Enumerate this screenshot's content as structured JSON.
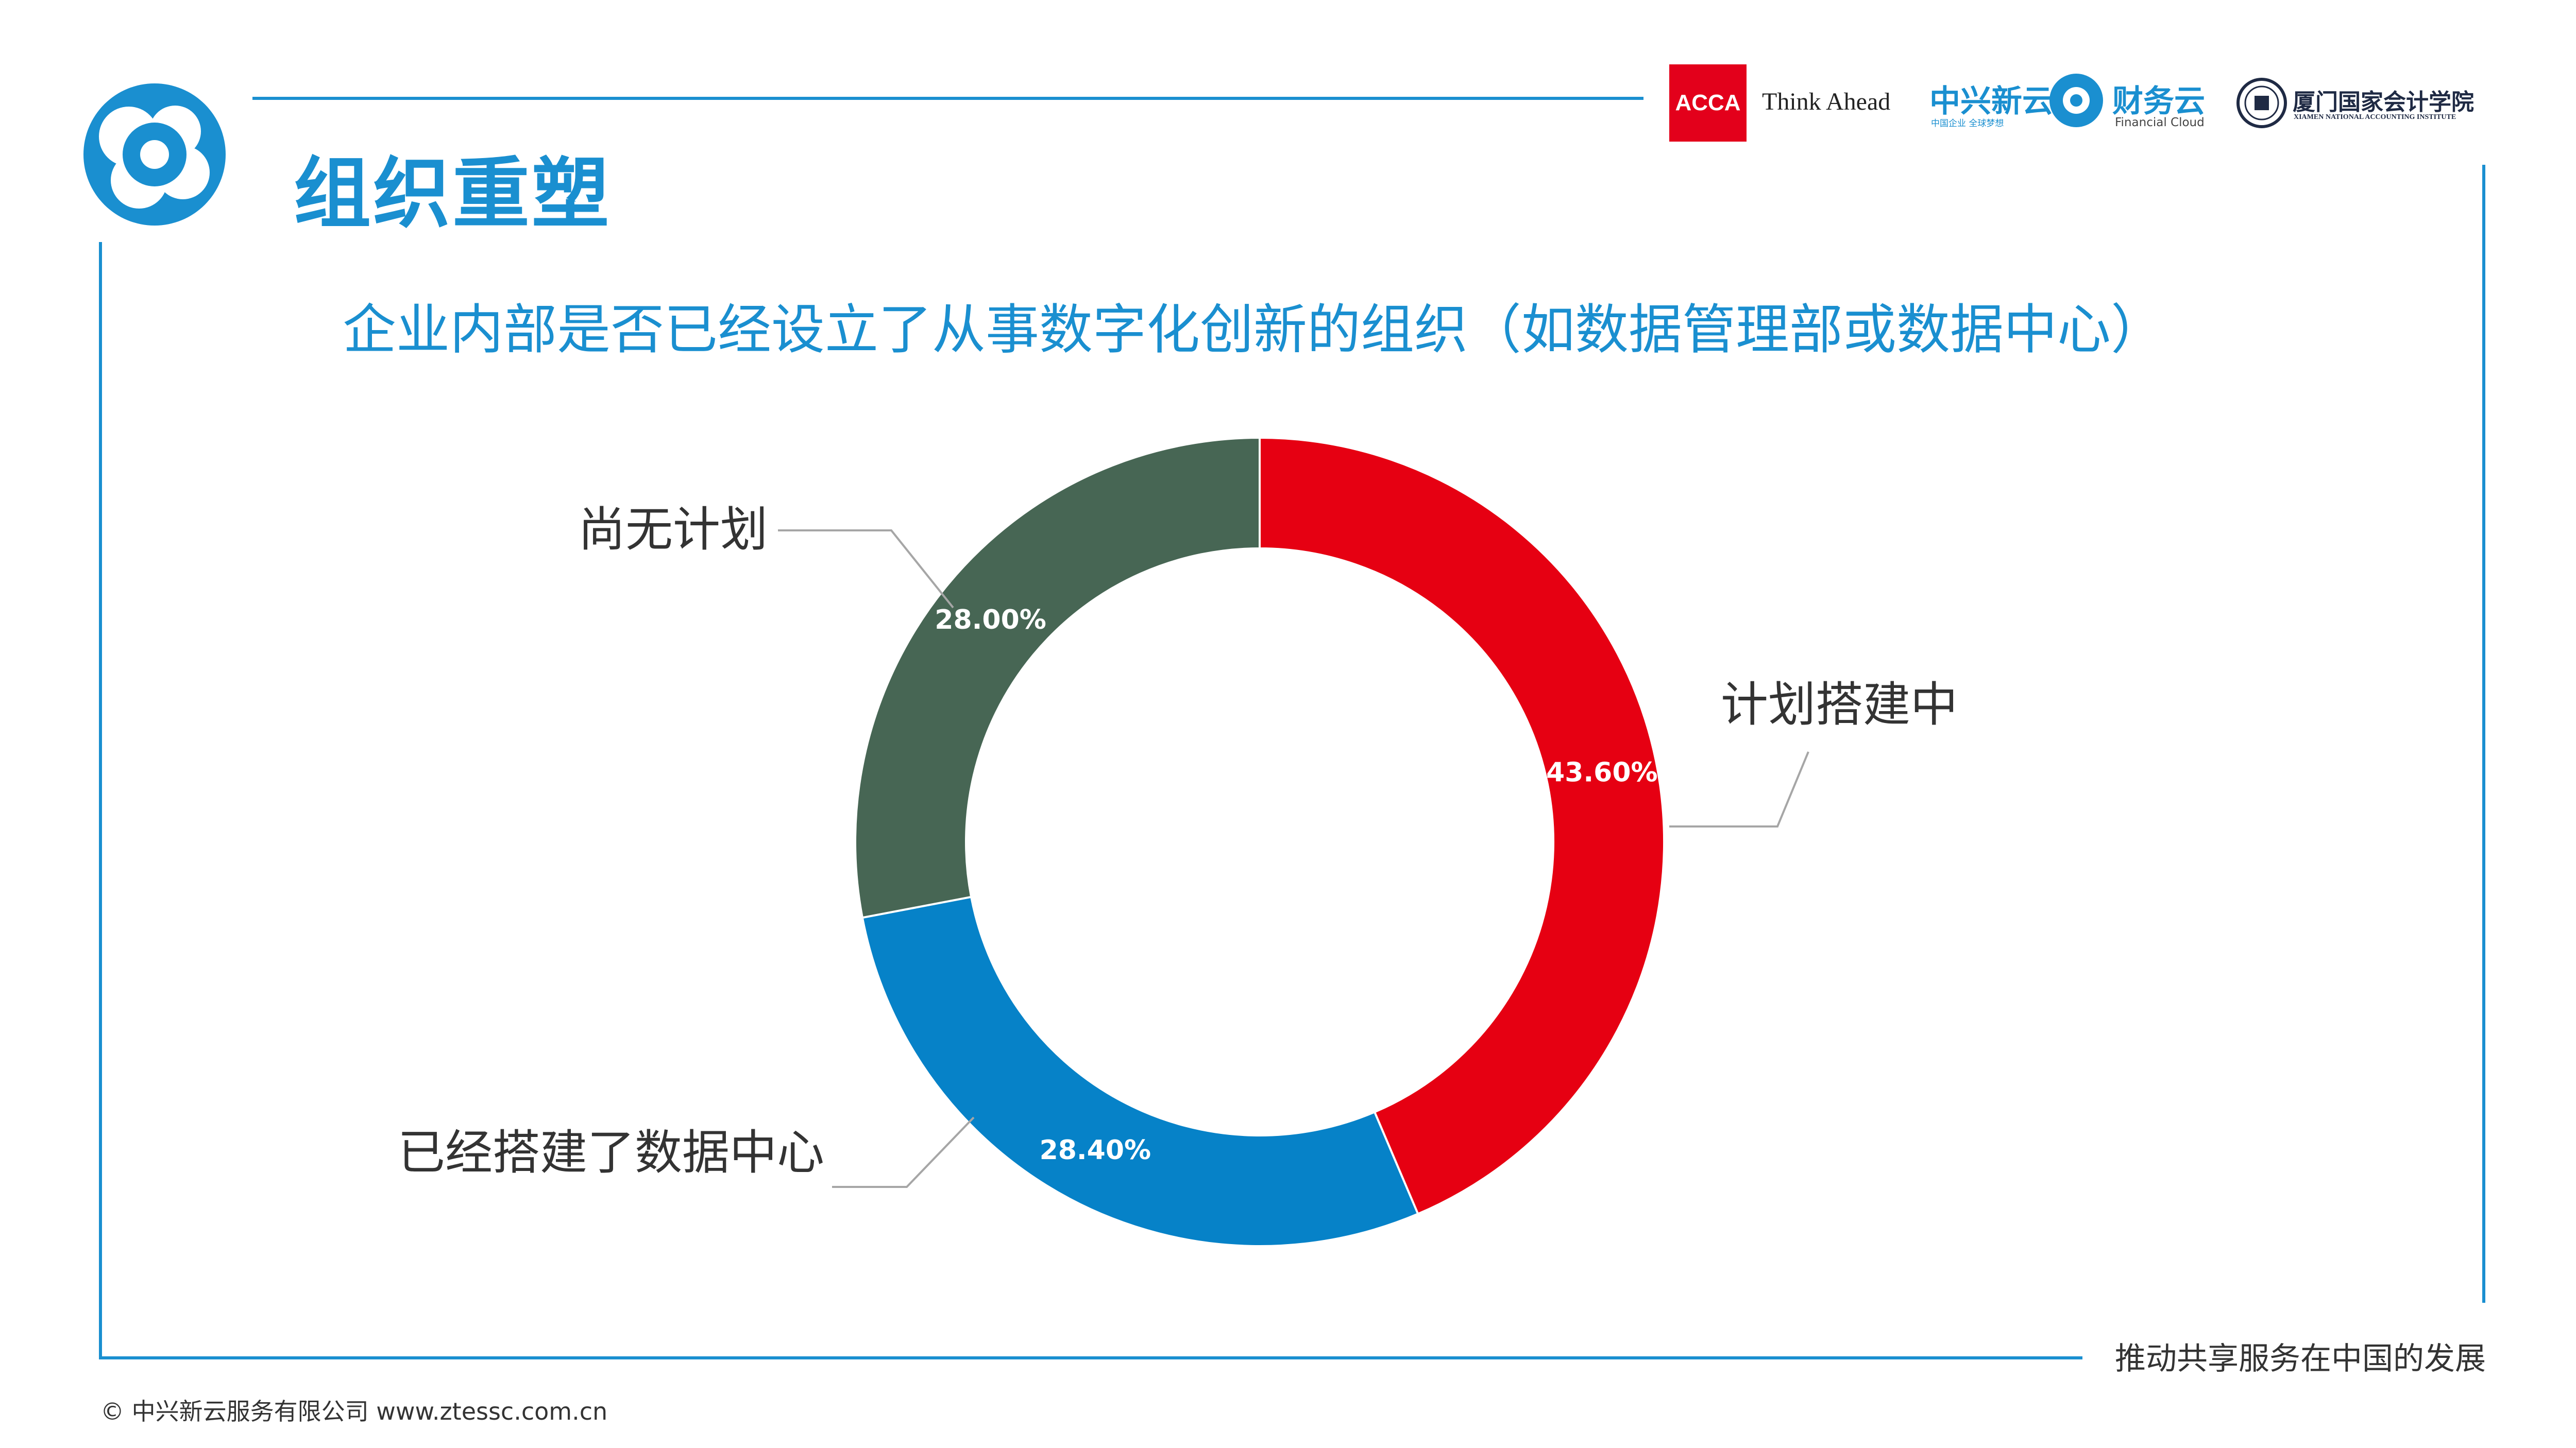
{
  "header": {
    "title": "组织重塑"
  },
  "partners": {
    "acca_mark": "ACCA",
    "acca_tagline": "Think Ahead",
    "zte_name": "中兴新云",
    "zte_sub": "中国企业 全球梦想",
    "fc_name": "财务云",
    "fc_sub": "Financial Cloud",
    "xm_name": "厦门国家会计学院",
    "xm_sub": "XIAMEN NATIONAL ACCOUNTING INSTITUTE"
  },
  "question": "企业内部是否已经设立了从事数字化创新的组织（如数据管理部或数据中心）",
  "chart_data": {
    "type": "pie",
    "donut": true,
    "categories": [
      "计划搭建中",
      "已经搭建了数据中心",
      "尚无计划"
    ],
    "values": [
      43.6,
      28.4,
      28.0
    ],
    "value_labels": [
      "43.60%",
      "28.40%",
      "28.00%"
    ],
    "colors": [
      "#e60012",
      "#0682c8",
      "#476654"
    ]
  },
  "footer": {
    "slogan": "推动共享服务在中国的发展",
    "copyright": "© 中兴新云服务有限公司  www.ztessc.com.cn"
  },
  "colors": {
    "accent": "#1a8fd0"
  }
}
